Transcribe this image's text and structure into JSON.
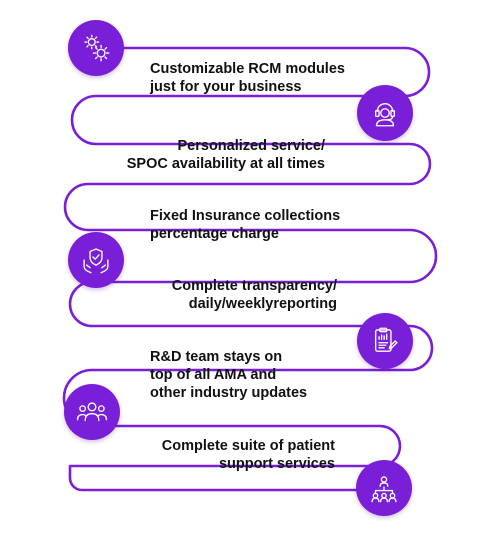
{
  "colors": {
    "accent": "#7a1fd8",
    "path": "#7a1fd8",
    "text": "#111111",
    "icon": "#ffffff"
  },
  "steps": [
    {
      "lines": [
        "Customizable RCM modules",
        "just for your business"
      ],
      "icon": "gears-icon"
    },
    {
      "lines": [
        "Personalized service/",
        "SPOC availability at all times"
      ],
      "icon": "headset-agent-icon"
    },
    {
      "lines": [
        "Fixed Insurance collections",
        "percentage charge"
      ],
      "icon": "shield-check-hands-icon"
    },
    {
      "lines": [
        "Complete transparency/",
        "daily/weeklyreporting"
      ],
      "icon": "clipboard-report-icon"
    },
    {
      "lines": [
        "R&D team stays on",
        "top of all AMA and",
        "other industry updates"
      ],
      "icon": "team-icon"
    },
    {
      "lines": [
        "Complete suite of patient",
        "support services"
      ],
      "icon": "network-people-icon"
    }
  ]
}
